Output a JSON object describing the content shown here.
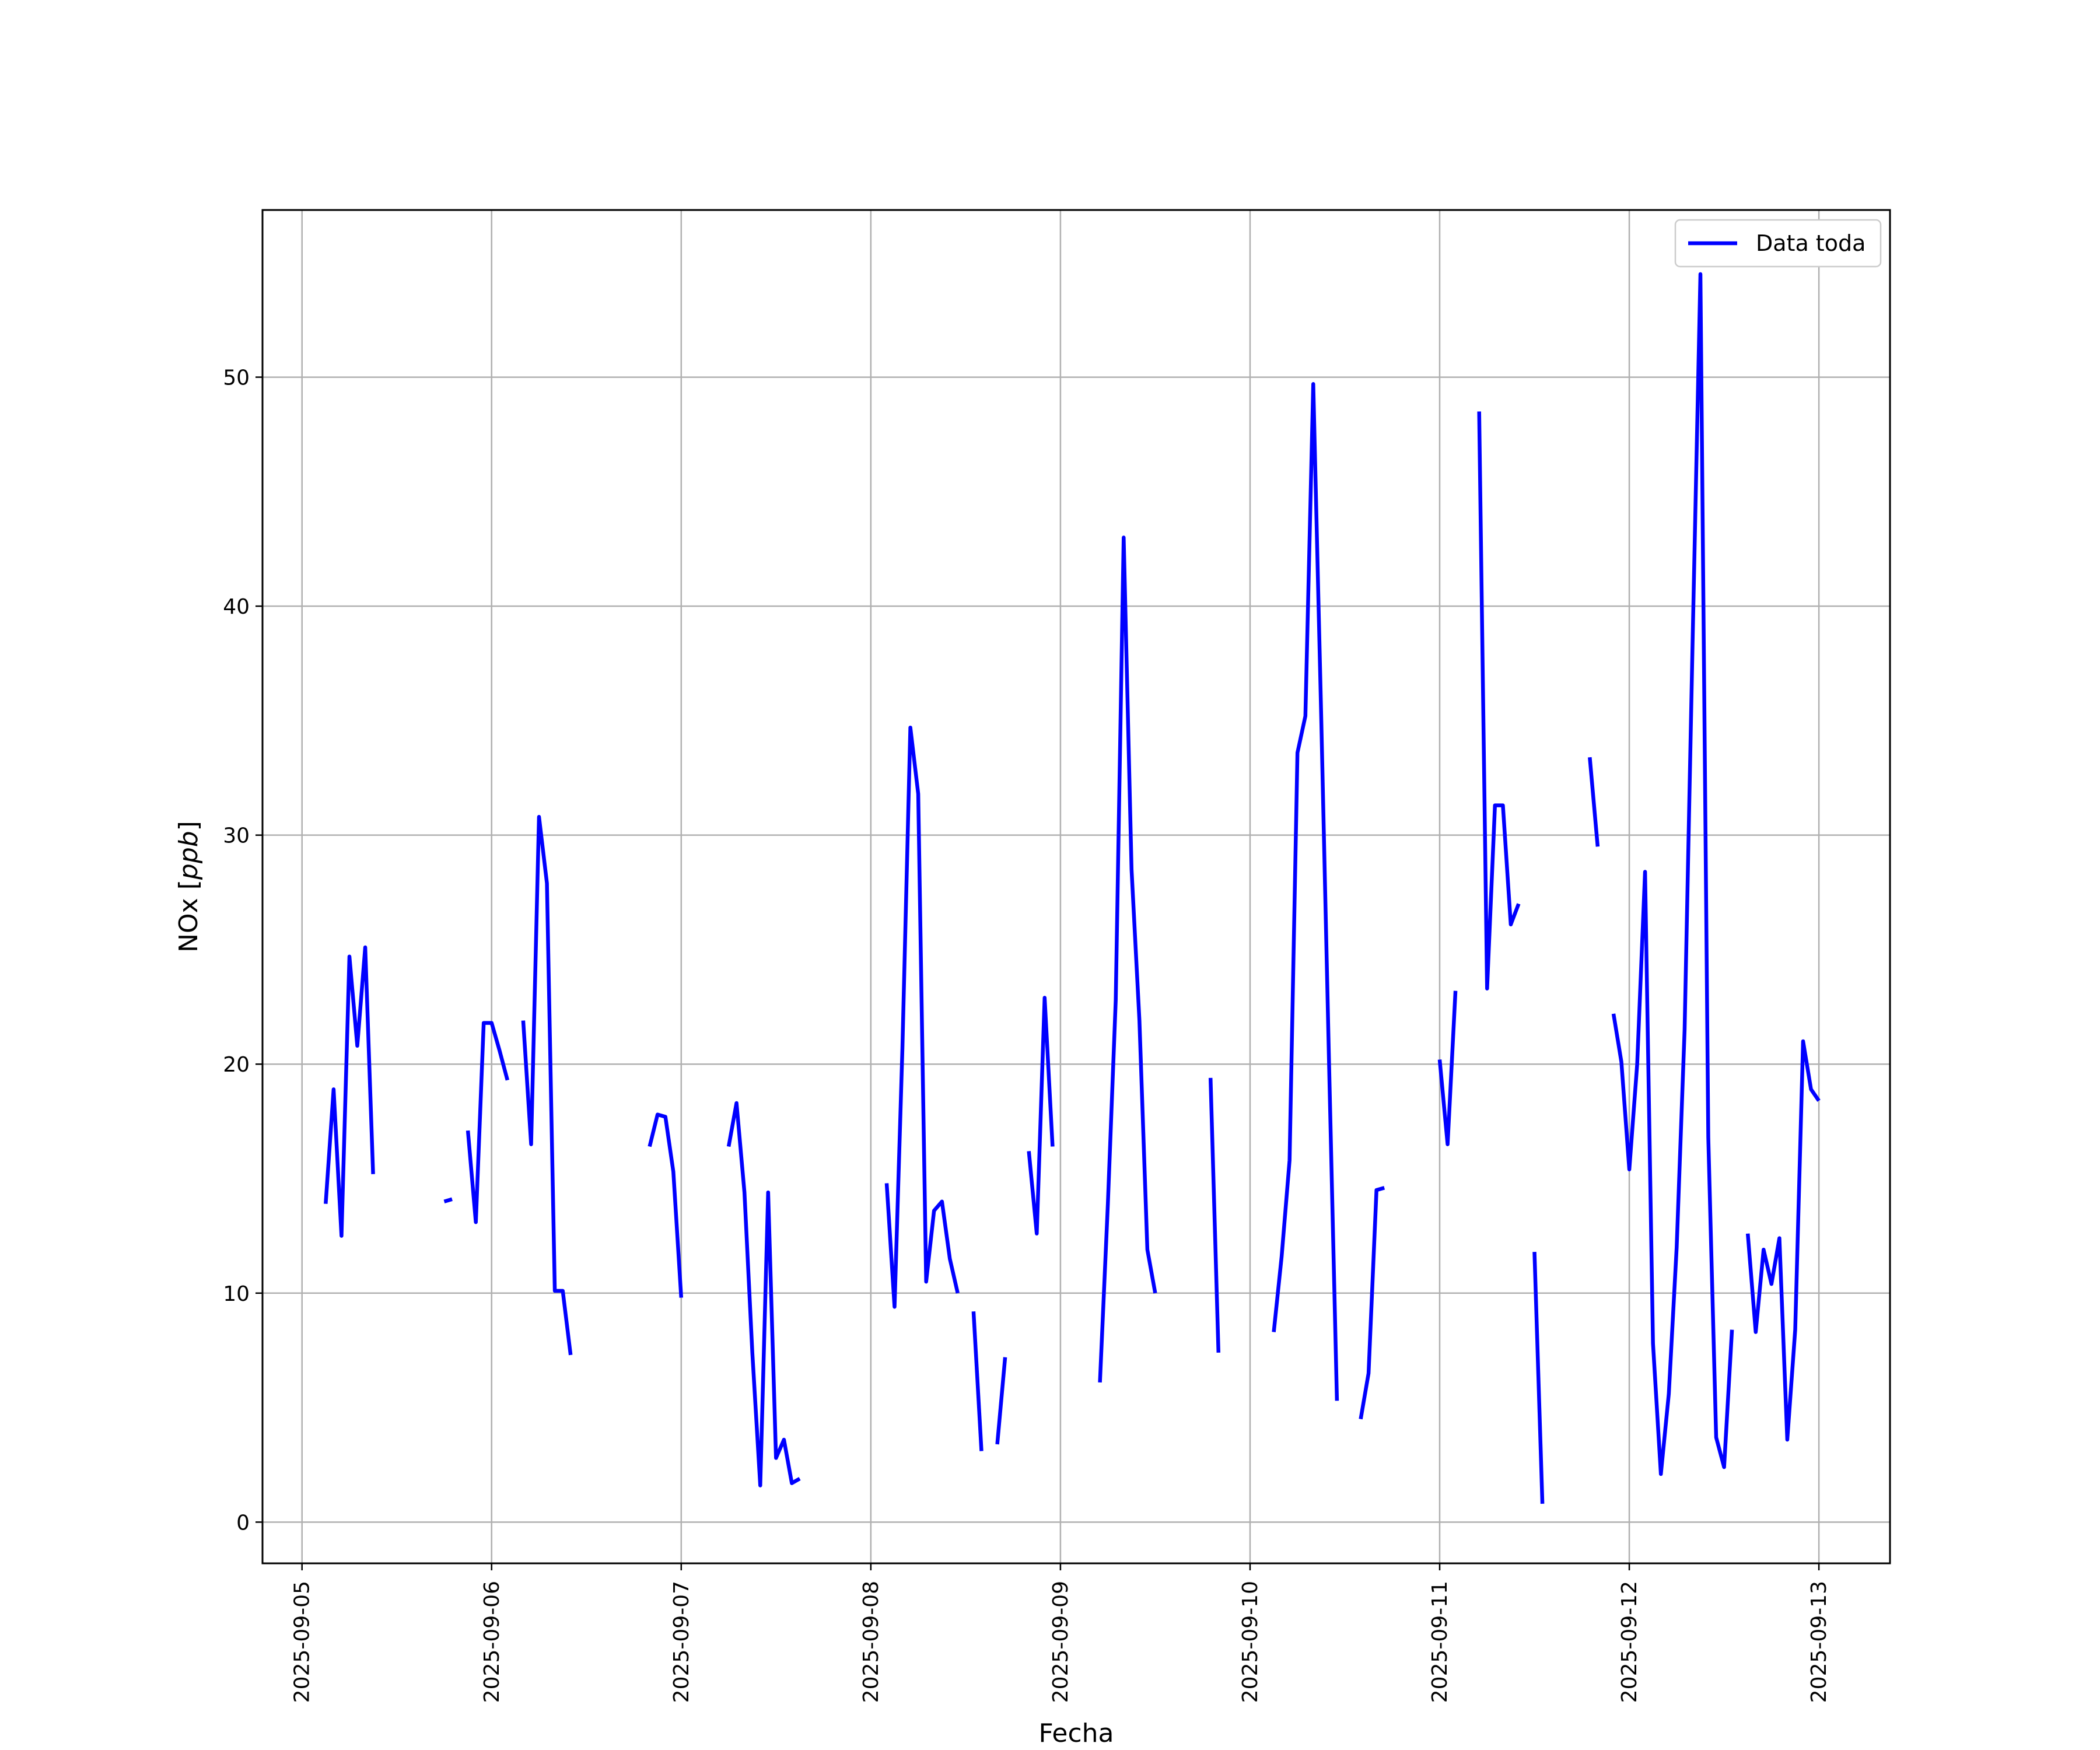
{
  "chart_data": {
    "type": "line",
    "xlabel": "Fecha",
    "ylabel": "NOx [ppb]",
    "ylabel_unit": "ppb",
    "xlim": [
      "2025-09-04T19:00",
      "2025-09-13T09:00"
    ],
    "ylim": [
      -1.8,
      57.3
    ],
    "yticks": [
      0,
      10,
      20,
      30,
      40,
      50
    ],
    "xticks": [
      "2025-09-05",
      "2025-09-06",
      "2025-09-07",
      "2025-09-08",
      "2025-09-09",
      "2025-09-10",
      "2025-09-11",
      "2025-09-12",
      "2025-09-13"
    ],
    "grid": true,
    "legend": {
      "position": "top-right",
      "entries": [
        "Data toda"
      ]
    },
    "series": [
      {
        "name": "Data toda",
        "color": "#0000ff",
        "segments": [
          [
            [
              "2025-09-05T03:00",
              13.9
            ],
            [
              "2025-09-05T04:00",
              18.9
            ],
            [
              "2025-09-05T05:00",
              12.5
            ],
            [
              "2025-09-05T06:00",
              24.7
            ],
            [
              "2025-09-05T07:00",
              20.8
            ],
            [
              "2025-09-05T08:00",
              25.1
            ],
            [
              "2025-09-05T09:00",
              15.2
            ]
          ],
          [
            [
              "2025-09-05T18:00",
              14.0
            ],
            [
              "2025-09-05T19:00",
              14.1
            ]
          ],
          [
            [
              "2025-09-05T21:00",
              17.1
            ],
            [
              "2025-09-05T22:00",
              13.1
            ],
            [
              "2025-09-05T23:00",
              21.8
            ],
            [
              "2025-09-06T00:00",
              21.8
            ],
            [
              "2025-09-06T01:00",
              20.6
            ],
            [
              "2025-09-06T02:00",
              19.3
            ]
          ],
          [
            [
              "2025-09-06T04:00",
              21.9
            ],
            [
              "2025-09-06T05:00",
              16.5
            ],
            [
              "2025-09-06T06:00",
              30.8
            ],
            [
              "2025-09-06T07:00",
              27.9
            ],
            [
              "2025-09-06T08:00",
              10.1
            ],
            [
              "2025-09-06T09:00",
              10.1
            ],
            [
              "2025-09-06T10:00",
              7.3
            ]
          ],
          [
            [
              "2025-09-06T20:00",
              16.4
            ],
            [
              "2025-09-06T21:00",
              17.8
            ],
            [
              "2025-09-06T22:00",
              17.7
            ],
            [
              "2025-09-06T23:00",
              15.3
            ],
            [
              "2025-09-07T00:00",
              9.8
            ]
          ],
          [
            [
              "2025-09-07T06:00",
              16.4
            ],
            [
              "2025-09-07T07:00",
              18.3
            ],
            [
              "2025-09-07T08:00",
              14.4
            ],
            [
              "2025-09-07T09:00",
              7.4
            ],
            [
              "2025-09-07T10:00",
              1.6
            ],
            [
              "2025-09-07T11:00",
              14.4
            ],
            [
              "2025-09-07T12:00",
              2.8
            ],
            [
              "2025-09-07T13:00",
              3.6
            ],
            [
              "2025-09-07T14:00",
              1.7
            ],
            [
              "2025-09-07T15:00",
              1.9
            ]
          ],
          [
            [
              "2025-09-08T02:00",
              14.8
            ],
            [
              "2025-09-08T03:00",
              9.4
            ],
            [
              "2025-09-08T04:00",
              20.7
            ],
            [
              "2025-09-08T05:00",
              34.7
            ],
            [
              "2025-09-08T06:00",
              31.8
            ],
            [
              "2025-09-08T07:00",
              10.5
            ],
            [
              "2025-09-08T08:00",
              13.6
            ],
            [
              "2025-09-08T09:00",
              14.0
            ],
            [
              "2025-09-08T10:00",
              11.5
            ],
            [
              "2025-09-08T11:00",
              10.0
            ]
          ],
          [
            [
              "2025-09-08T13:00",
              9.2
            ],
            [
              "2025-09-08T14:00",
              3.1
            ]
          ],
          [
            [
              "2025-09-08T16:00",
              3.4
            ],
            [
              "2025-09-08T17:00",
              7.2
            ]
          ],
          [
            [
              "2025-09-08T20:00",
              16.2
            ],
            [
              "2025-09-08T21:00",
              12.6
            ],
            [
              "2025-09-08T22:00",
              22.9
            ],
            [
              "2025-09-08T23:00",
              16.4
            ]
          ],
          [
            [
              "2025-09-09T05:00",
              6.1
            ],
            [
              "2025-09-09T06:00",
              13.9
            ],
            [
              "2025-09-09T07:00",
              22.8
            ],
            [
              "2025-09-09T08:00",
              43.0
            ],
            [
              "2025-09-09T09:00",
              28.5
            ],
            [
              "2025-09-09T10:00",
              21.9
            ],
            [
              "2025-09-09T11:00",
              11.9
            ],
            [
              "2025-09-09T12:00",
              10.0
            ]
          ],
          [
            [
              "2025-09-09T19:00",
              19.4
            ],
            [
              "2025-09-09T20:00",
              7.4
            ]
          ],
          [
            [
              "2025-09-10T03:00",
              8.3
            ],
            [
              "2025-09-10T04:00",
              11.6
            ],
            [
              "2025-09-10T05:00",
              15.8
            ],
            [
              "2025-09-10T06:00",
              33.6
            ],
            [
              "2025-09-10T07:00",
              35.2
            ],
            [
              "2025-09-10T08:00",
              49.7
            ],
            [
              "2025-09-10T09:00",
              35.2
            ],
            [
              "2025-09-10T10:00",
              20.0
            ],
            [
              "2025-09-10T11:00",
              5.3
            ]
          ],
          [
            [
              "2025-09-10T14:00",
              4.5
            ],
            [
              "2025-09-10T15:00",
              6.5
            ],
            [
              "2025-09-10T16:00",
              14.5
            ],
            [
              "2025-09-10T17:00",
              14.6
            ]
          ],
          [
            [
              "2025-09-11T00:00",
              20.2
            ],
            [
              "2025-09-11T01:00",
              16.5
            ],
            [
              "2025-09-11T02:00",
              23.2
            ]
          ],
          [
            [
              "2025-09-11T05:00",
              48.5
            ],
            [
              "2025-09-11T06:00",
              23.3
            ],
            [
              "2025-09-11T07:00",
              31.3
            ],
            [
              "2025-09-11T08:00",
              31.3
            ],
            [
              "2025-09-11T09:00",
              26.1
            ],
            [
              "2025-09-11T10:00",
              27.0
            ]
          ],
          [
            [
              "2025-09-11T12:00",
              11.8
            ],
            [
              "2025-09-11T13:00",
              0.8
            ]
          ],
          [
            [
              "2025-09-11T19:00",
              33.4
            ],
            [
              "2025-09-11T20:00",
              29.5
            ]
          ],
          [
            [
              "2025-09-11T22:00",
              22.2
            ],
            [
              "2025-09-11T23:00",
              20.1
            ],
            [
              "2025-09-12T00:00",
              15.4
            ],
            [
              "2025-09-12T01:00",
              20.0
            ],
            [
              "2025-09-12T02:00",
              28.4
            ],
            [
              "2025-09-12T03:00",
              7.8
            ],
            [
              "2025-09-12T04:00",
              2.1
            ],
            [
              "2025-09-12T05:00",
              5.6
            ],
            [
              "2025-09-12T06:00",
              12.0
            ],
            [
              "2025-09-12T07:00",
              21.5
            ],
            [
              "2025-09-12T08:00",
              38.2
            ],
            [
              "2025-09-12T09:00",
              54.5
            ],
            [
              "2025-09-12T10:00",
              16.8
            ],
            [
              "2025-09-12T11:00",
              3.7
            ],
            [
              "2025-09-12T12:00",
              2.4
            ],
            [
              "2025-09-12T13:00",
              8.4
            ]
          ],
          [
            [
              "2025-09-12T15:00",
              12.6
            ],
            [
              "2025-09-12T16:00",
              8.3
            ],
            [
              "2025-09-12T17:00",
              11.9
            ],
            [
              "2025-09-12T18:00",
              10.4
            ],
            [
              "2025-09-12T19:00",
              12.4
            ],
            [
              "2025-09-12T20:00",
              3.6
            ],
            [
              "2025-09-12T21:00",
              8.4
            ],
            [
              "2025-09-12T22:00",
              21.0
            ],
            [
              "2025-09-12T23:00",
              18.9
            ],
            [
              "2025-09-13T00:00",
              18.4
            ]
          ]
        ]
      }
    ]
  }
}
